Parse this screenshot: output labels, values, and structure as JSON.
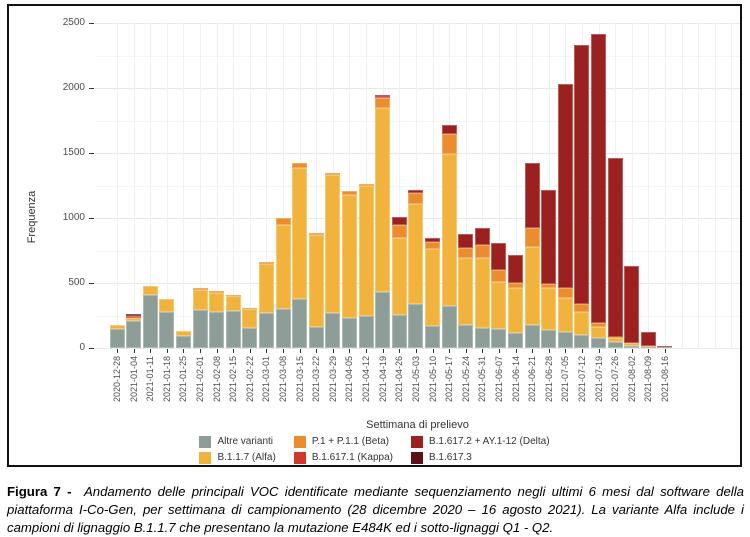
{
  "figure": {
    "y_axis": {
      "label": "Frequenza",
      "ticks": [
        0,
        500,
        1000,
        1500,
        2000,
        2500
      ]
    },
    "x_axis": {
      "label": "Settimana di prelievo"
    },
    "legend": [
      {
        "key": "altre",
        "label": "Altre varianti",
        "color": "#8d9e98"
      },
      {
        "key": "alfa",
        "label": "B.1.1.7 (Alfa)",
        "color": "#f2b33c"
      },
      {
        "key": "beta",
        "label": "P.1 + P.1.1 (Beta)",
        "color": "#ec8c2d"
      },
      {
        "key": "kappa",
        "label": "B.1.617.1 (Kappa)",
        "color": "#d03927"
      },
      {
        "key": "delta",
        "label": "B.1.617.2 + AY.1-12 (Delta)",
        "color": "#9c211e"
      },
      {
        "key": "b16173",
        "label": "B.1.617.3",
        "color": "#5a1214"
      }
    ]
  },
  "chart_data": {
    "type": "bar",
    "stacked": true,
    "title": "",
    "xlabel": "Settimana di prelievo",
    "ylabel": "Frequenza",
    "ylim": [
      0,
      2500
    ],
    "grid": true,
    "legend_position": "bottom",
    "categories": [
      "2020-12-28",
      "2021-01-04",
      "2021-01-11",
      "2021-01-18",
      "2021-01-25",
      "2021-02-01",
      "2021-02-08",
      "2021-02-15",
      "2021-02-22",
      "2021-03-01",
      "2021-03-08",
      "2021-03-15",
      "2021-03-22",
      "2021-03-29",
      "2021-04-05",
      "2021-04-12",
      "2021-04-19",
      "2021-04-26",
      "2021-05-03",
      "2021-05-10",
      "2021-05-17",
      "2021-05-24",
      "2021-05-31",
      "2021-06-07",
      "2021-06-14",
      "2021-06-21",
      "2021-06-28",
      "2021-07-05",
      "2021-07-12",
      "2021-07-19",
      "2021-07-26",
      "2021-08-02",
      "2021-08-09",
      "2021-08-16"
    ],
    "series": [
      {
        "name": "Altre varianti",
        "key": "altre",
        "color": "#8d9e98",
        "values": [
          145,
          210,
          410,
          280,
          90,
          295,
          280,
          285,
          155,
          270,
          300,
          380,
          160,
          270,
          230,
          245,
          430,
          255,
          335,
          170,
          325,
          180,
          155,
          150,
          115,
          175,
          140,
          120,
          100,
          75,
          45,
          15,
          5,
          8
        ]
      },
      {
        "name": "B.1.1.7 (Alfa)",
        "key": "alfa",
        "color": "#f2b33c",
        "values": [
          30,
          20,
          65,
          100,
          40,
          155,
          140,
          115,
          145,
          375,
          645,
          1005,
          710,
          1060,
          950,
          1000,
          1415,
          590,
          770,
          595,
          1170,
          510,
          535,
          360,
          345,
          600,
          320,
          265,
          175,
          90,
          30,
          20,
          10,
          0
        ]
      },
      {
        "name": "P.1 + P.1.1 (Beta)",
        "key": "beta",
        "color": "#ec8c2d",
        "values": [
          0,
          0,
          0,
          0,
          0,
          15,
          15,
          10,
          10,
          20,
          55,
          40,
          15,
          15,
          25,
          15,
          75,
          100,
          90,
          50,
          155,
          80,
          100,
          90,
          40,
          145,
          30,
          75,
          60,
          25,
          12,
          0,
          0,
          0
        ]
      },
      {
        "name": "B.1.617.1 (Kappa)",
        "key": "kappa",
        "color": "#d03927",
        "values": [
          0,
          15,
          0,
          0,
          0,
          0,
          0,
          0,
          0,
          0,
          0,
          0,
          0,
          0,
          0,
          0,
          10,
          0,
          0,
          0,
          0,
          0,
          0,
          0,
          0,
          0,
          0,
          0,
          0,
          0,
          0,
          0,
          0,
          0
        ]
      },
      {
        "name": "B.1.617.2 + AY.1-12 (Delta)",
        "key": "delta",
        "color": "#9c211e",
        "values": [
          0,
          0,
          0,
          0,
          0,
          0,
          0,
          0,
          0,
          0,
          0,
          0,
          0,
          0,
          0,
          0,
          15,
          65,
          20,
          30,
          65,
          110,
          130,
          205,
          215,
          505,
          725,
          1570,
          1995,
          2225,
          1378,
          595,
          105,
          7
        ]
      },
      {
        "name": "B.1.617.3",
        "key": "b16173",
        "color": "#5a1214",
        "values": [
          0,
          20,
          0,
          0,
          0,
          0,
          0,
          0,
          0,
          0,
          0,
          0,
          0,
          0,
          0,
          0,
          0,
          0,
          0,
          0,
          0,
          0,
          0,
          0,
          0,
          0,
          0,
          0,
          0,
          0,
          0,
          0,
          0,
          0
        ]
      }
    ]
  },
  "caption": {
    "label": "Figura 7 -",
    "text": "Andamento delle principali VOC identificate mediante sequenziamento negli ultimi 6 mesi dal software della piattaforma I-Co-Gen, per settimana di campionamento (28 dicembre 2020 – 16 agosto 2021). La variante Alfa include i campioni di lignaggio B.1.1.7 che presentano la mutazione E484K ed i sotto-lignaggi Q1 - Q2."
  }
}
